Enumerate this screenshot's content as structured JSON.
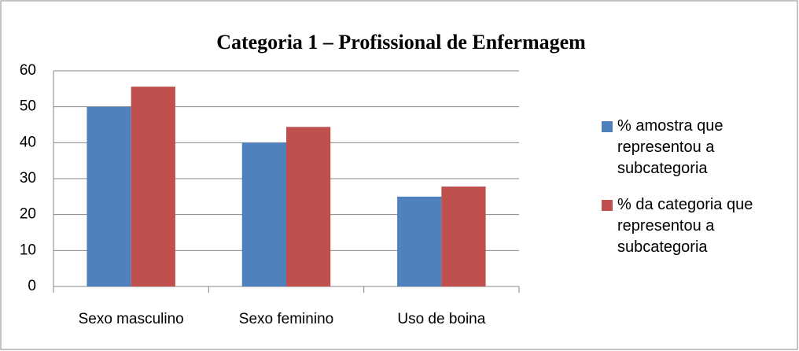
{
  "chart_data": {
    "type": "bar",
    "title": "Categoria 1 – Profissional de Enfermagem",
    "categories": [
      "Sexo masculino",
      "Sexo feminino",
      "Uso de boina"
    ],
    "series": [
      {
        "name": "% amostra que representou a subcategoria",
        "color": "#4f81bd",
        "values": [
          50,
          40,
          25
        ]
      },
      {
        "name": "% da categoria que representou a subcategoria",
        "color": "#c0504d",
        "values": [
          55.6,
          44.4,
          27.8
        ]
      }
    ],
    "ylim": [
      0,
      60
    ],
    "yticks": [
      0,
      10,
      20,
      30,
      40,
      50,
      60
    ],
    "grid": true,
    "legend": "right"
  }
}
